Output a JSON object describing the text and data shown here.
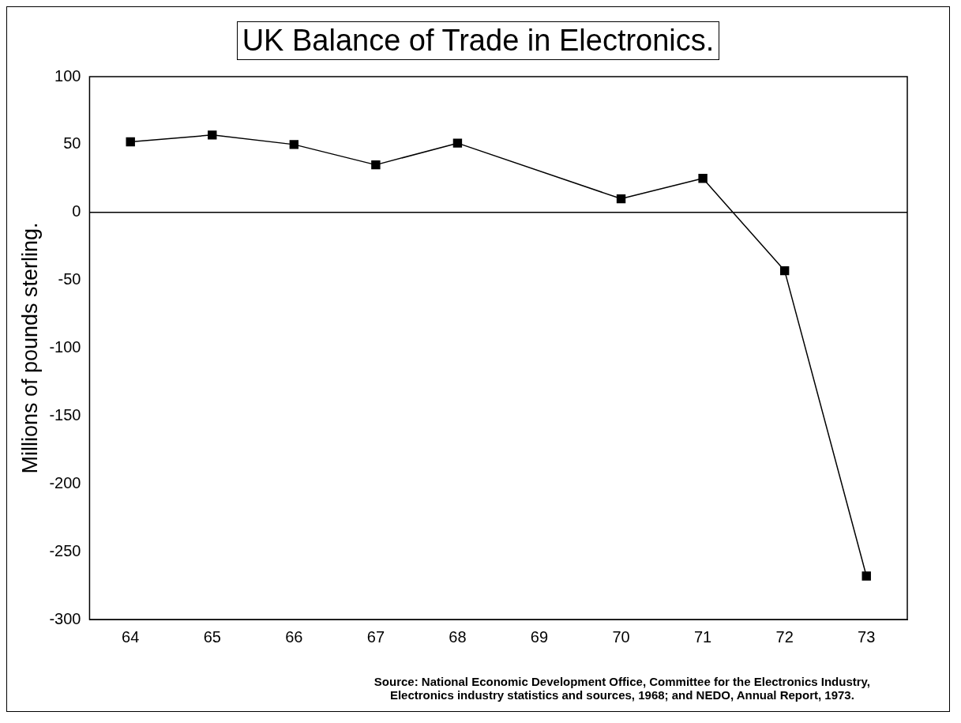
{
  "chart_data": {
    "type": "line",
    "title": "UK Balance of Trade in Electronics.",
    "ylabel": "Millions of pounds sterling.",
    "x": [
      64,
      65,
      66,
      67,
      68,
      70,
      71,
      72,
      73
    ],
    "values": [
      52,
      57,
      50,
      35,
      51,
      10,
      25,
      -43,
      -268
    ],
    "color": "#000000",
    "marker": "square",
    "line_style": "solid",
    "xlim": [
      63.5,
      73.5
    ],
    "xticks": [
      64,
      65,
      66,
      67,
      68,
      69,
      70,
      71,
      72,
      73
    ],
    "ylim": [
      -300,
      100
    ],
    "yticks": [
      -300,
      -250,
      -200,
      -150,
      -100,
      -50,
      0,
      50,
      100
    ],
    "ref_lines": [
      {
        "axis": "y",
        "value": 0,
        "color": "#000000"
      }
    ],
    "grid": false,
    "legend": false,
    "annotations": [
      "Source: National Economic Development Office, Committee for the Electronics Industry,",
      "Electronics industry statistics and sources, 1968; and NEDO, Annual Report, 1973."
    ]
  }
}
